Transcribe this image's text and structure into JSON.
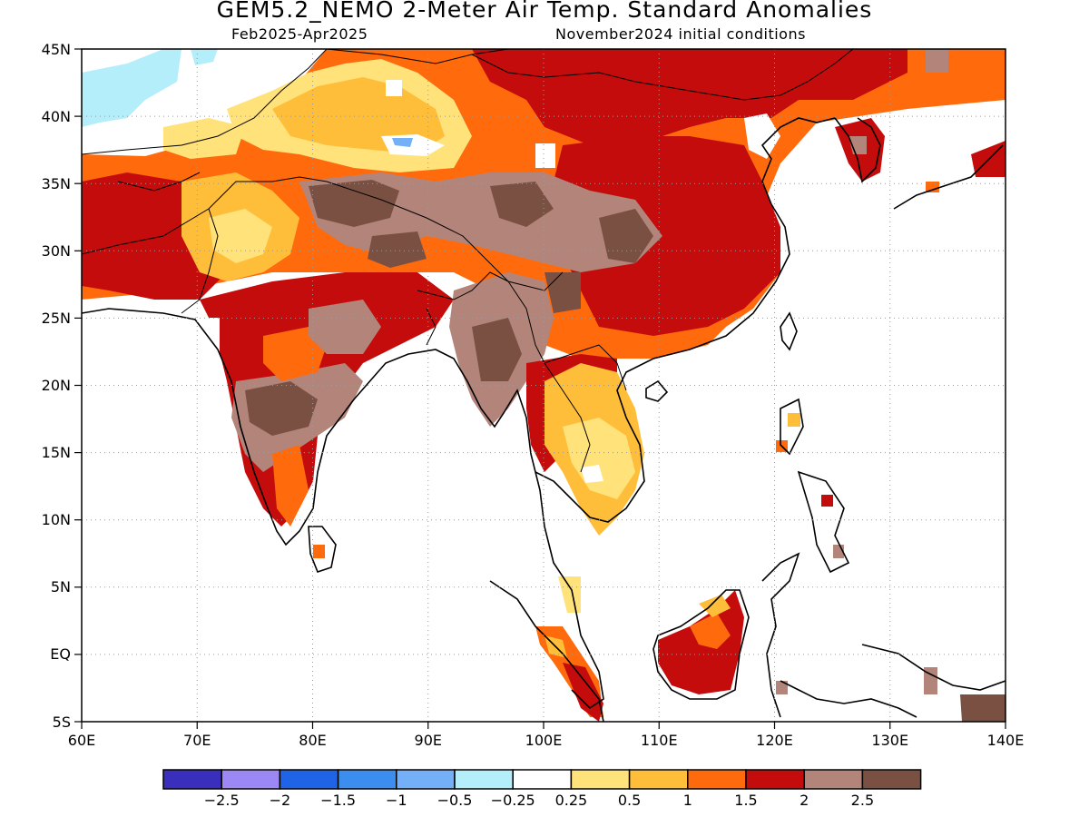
{
  "title": "GEM5.2_NEMO 2-Meter Air Temp. Standard Anomalies",
  "subtitle_left": "Feb2025-Apr2025",
  "subtitle_right": "November2024 initial conditions",
  "axes": {
    "lon_ticks": [
      "60E",
      "70E",
      "80E",
      "90E",
      "100E",
      "110E",
      "120E",
      "130E",
      "140E"
    ],
    "lat_ticks": [
      "45N",
      "40N",
      "35N",
      "30N",
      "25N",
      "20N",
      "15N",
      "10N",
      "5N",
      "EQ",
      "5S"
    ],
    "lon_range": [
      60,
      140
    ],
    "lat_range": [
      -5,
      45
    ],
    "grid": true
  },
  "colorbar": {
    "colors": [
      "#3a2fbd",
      "#9b88f5",
      "#1f63e6",
      "#3b8ef0",
      "#74b0f7",
      "#b3eefa",
      "#ffffff",
      "#ffe27a",
      "#ffbe3a",
      "#ff6a0d",
      "#c50c0c",
      "#b3857a",
      "#7a5043"
    ],
    "labels": [
      "-2.5",
      "-2",
      "-1.5",
      "-1",
      "-0.5",
      "-0.25",
      "0.25",
      "0.5",
      "1",
      "1.5",
      "2",
      "2.5"
    ]
  },
  "map_data": {
    "type": "anomaly-map",
    "variable": "2-Meter Air Temperature standard anomaly",
    "regions": [
      {
        "area": "NW India / Pakistan / Afghanistan",
        "category": "1 to 2"
      },
      {
        "area": "Central India plateau",
        "category": ">2.5"
      },
      {
        "area": "Southern Tibetan Plateau",
        "category": "2 to >2.5"
      },
      {
        "area": "Myanmar",
        "category": "2 to >2.5"
      },
      {
        "area": "Western China / Tarim",
        "category": "0.25 to 1.5"
      },
      {
        "area": "Eastern China",
        "category": "1.5 to 2"
      },
      {
        "area": "Indochina",
        "category": "0.25 to 1"
      },
      {
        "area": "Borneo",
        "category": "1.5 to 2"
      },
      {
        "area": "Kazakhstan",
        "category": "-0.5 to -0.25"
      }
    ]
  }
}
